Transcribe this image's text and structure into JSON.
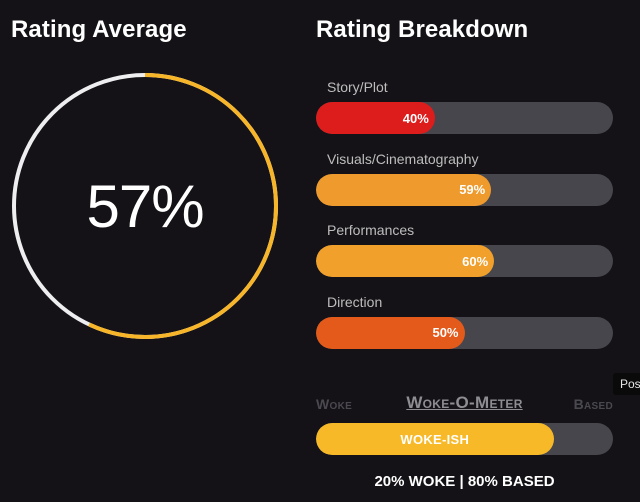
{
  "rating_average": {
    "heading": "Rating Average",
    "value_label": "57%",
    "value": 57,
    "colors": {
      "filled": "#f7b52a",
      "remaining": "#eeeef0"
    }
  },
  "rating_breakdown": {
    "heading": "Rating Breakdown",
    "categories": [
      {
        "label": "Story/Plot",
        "value": 40,
        "value_label": "40%",
        "color": "#dd1c1c"
      },
      {
        "label": "Visuals/Cinematography",
        "value": 59,
        "value_label": "59%",
        "color": "#ef9a2c"
      },
      {
        "label": "Performances",
        "value": 60,
        "value_label": "60%",
        "color": "#f0a02b"
      },
      {
        "label": "Direction",
        "value": 50,
        "value_label": "50%",
        "color": "#e35a1a"
      }
    ],
    "track_color": "#47464c"
  },
  "woke_meter": {
    "left_label": "Woke",
    "title": "Woke-O-Meter",
    "right_label": "Based",
    "fill_label": "WOKE-ISH",
    "fill_value": 80,
    "fill_color": "#f7b928",
    "summary": "20% WOKE | 80% BASED"
  },
  "tooltip": {
    "text": "Pos"
  }
}
